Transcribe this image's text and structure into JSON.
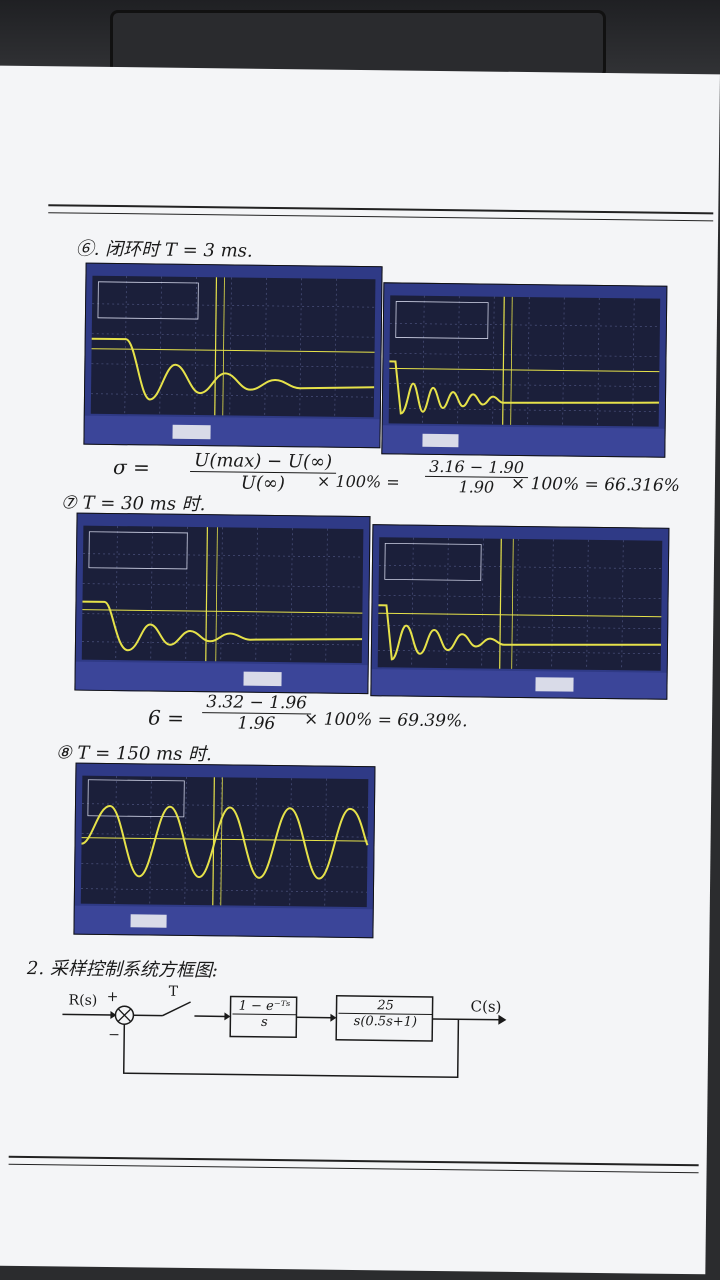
{
  "colors": {
    "paper": "#f4f5f7",
    "scope_bg": "#2f3a86",
    "trace": "#e6e24a",
    "ink": "#1a1a1a"
  },
  "section6": {
    "heading": "⑥. 闭环时  T = 3 ms.",
    "formula_lhs": "σ =",
    "frac1_num": "U(max) − U(∞)",
    "frac1_den": "U(∞)",
    "times1": "× 100% =",
    "frac2_num": "3.16 − 1.90",
    "frac2_den": "1.90",
    "result": "× 100% = 66.316%"
  },
  "section7": {
    "heading": "⑦  T = 30 ms 时.",
    "formula_lhs": "6 =",
    "frac_num": "3.32 − 1.96",
    "frac_den": "1.96",
    "result": "× 100% = 69.39%."
  },
  "section8": {
    "heading": "⑧     T = 150 ms 时."
  },
  "section2": {
    "heading": "2.    采样控制系统方框图:",
    "input": "R(s)",
    "plus": "+",
    "minus": "−",
    "switch": "T",
    "block1": "1 − e⁻ᵀˢ / s",
    "block1_num": "1 − e⁻ᵀˢ",
    "block1_den": "s",
    "block2_num": "25",
    "block2_den": "s(0.5s+1)",
    "output": "C(s)"
  }
}
